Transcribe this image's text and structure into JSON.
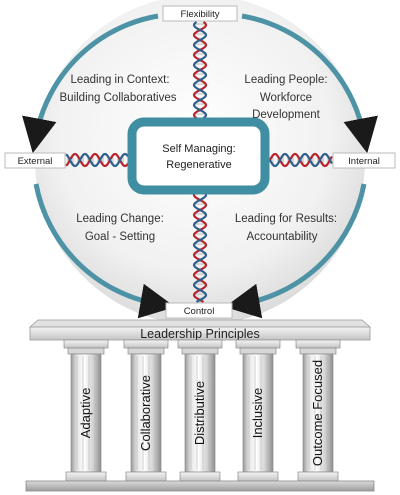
{
  "model": {
    "top_label": "Flexibility",
    "bottom_label": "Control",
    "left_label": "External",
    "right_label": "Internal",
    "center": {
      "line1": "Self Managing:",
      "line2": "Regenerative"
    },
    "quadrants": {
      "top_left": {
        "line1": "Leading in Context:",
        "line2": "Building Collaboratives"
      },
      "top_right": {
        "line1": "Leading People:",
        "line2": "Workforce",
        "line3": "Development"
      },
      "bottom_left": {
        "line1": "Leading Change:",
        "line2": "Goal - Setting"
      },
      "bottom_right": {
        "line1": "Leading for Results:",
        "line2": "Accountability"
      }
    }
  },
  "principles": {
    "title": "Leadership Principles",
    "pillars": [
      "Adaptive",
      "Collaborative",
      "Distributive",
      "Inclusive",
      "Outcome Focused"
    ]
  },
  "colors": {
    "arrow": "#4d93a5",
    "center_border": "#3f8ea1",
    "dna_red": "#b8242a",
    "dna_blue": "#2e5f8d"
  }
}
